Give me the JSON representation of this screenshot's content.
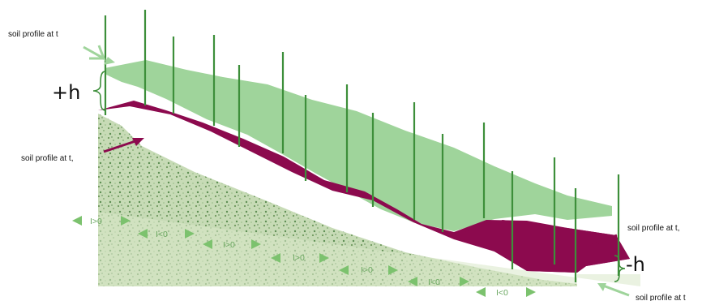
{
  "labels": {
    "profile_t_top": "soil profile at t",
    "profile_t1_left": "soil profile at t,",
    "profile_t1_right": "soil profile at t,",
    "profile_t_bottom": "soil profile at t",
    "plus_h": "+h",
    "minus_h": "-h"
  },
  "irrigation_labels": [
    "I>0",
    "I<0",
    "I>0",
    "I>0",
    "I>0",
    "I<0",
    "I<0"
  ],
  "colors": {
    "soil_texture": "#b9d1a7",
    "initial_profile": "#9fd49b",
    "eroded_profile": "#8c0a4e",
    "rod": "#3d8f3a",
    "arrow_green": "#7cc26e",
    "arrow_dark": "#8c0a4e"
  },
  "icons": [
    "measurement-rod",
    "left-arrow-icon",
    "right-arrow-icon",
    "pointer-arrow-icon"
  ]
}
